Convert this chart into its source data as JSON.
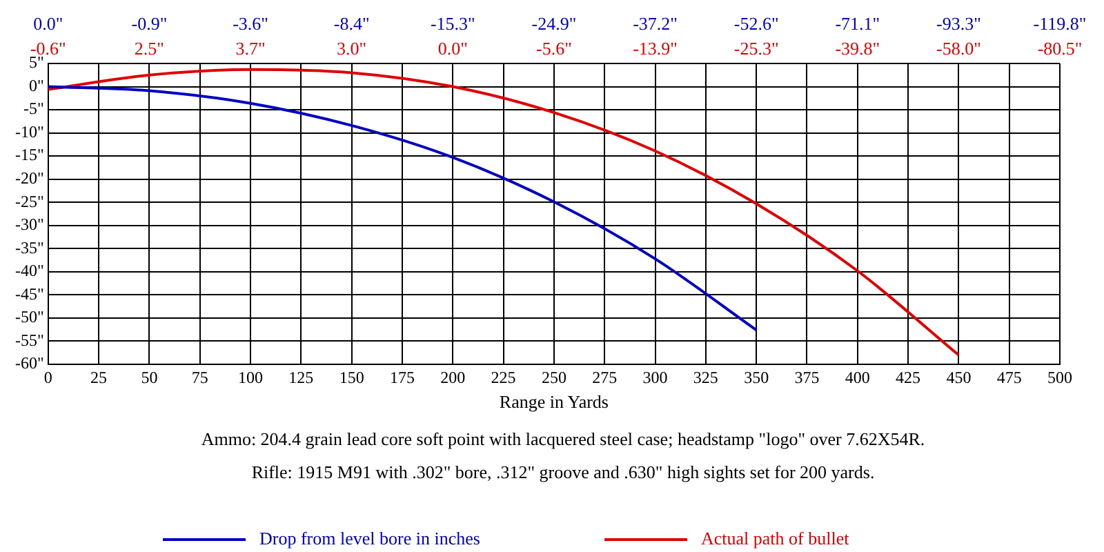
{
  "chart_data": {
    "type": "line",
    "xlabel": "Range in Yards",
    "x": [
      0,
      50,
      100,
      150,
      200,
      250,
      300,
      350,
      400,
      450
    ],
    "series": [
      {
        "name": "Drop from level bore in inches",
        "color": "#0000c0",
        "values": [
          0.0,
          -0.9,
          -3.6,
          -8.4,
          -15.3,
          -24.9,
          -37.2,
          -52.6,
          null,
          null
        ]
      },
      {
        "name": "Actual path of bullet",
        "color": "#e00000",
        "values": [
          -0.6,
          2.5,
          3.7,
          3.0,
          0.0,
          -5.6,
          -13.9,
          -25.3,
          -39.8,
          -58.0
        ]
      }
    ],
    "xlim": [
      0,
      500
    ],
    "xticks": [
      0,
      25,
      50,
      75,
      100,
      125,
      150,
      175,
      200,
      225,
      250,
      275,
      300,
      325,
      350,
      375,
      400,
      425,
      450,
      475,
      500
    ],
    "ylim": [
      -60,
      5
    ],
    "yticks": [
      {
        "value": 5,
        "label": "5\""
      },
      {
        "value": 0,
        "label": "0\""
      },
      {
        "value": -5,
        "label": "-5\""
      },
      {
        "value": -10,
        "label": "-10\""
      },
      {
        "value": -15,
        "label": "-15\""
      },
      {
        "value": -20,
        "label": "-20\""
      },
      {
        "value": -25,
        "label": "-25\""
      },
      {
        "value": -30,
        "label": "-30\""
      },
      {
        "value": -35,
        "label": "-35\""
      },
      {
        "value": -40,
        "label": "-40\""
      },
      {
        "value": -45,
        "label": "-45\""
      },
      {
        "value": -50,
        "label": "-50\""
      },
      {
        "value": -55,
        "label": "-55\""
      },
      {
        "value": -60,
        "label": "-60\""
      }
    ],
    "grid": true,
    "legend": "bottom",
    "annotations": [
      "0.0\"   -0.9\"   -3.6\"   -8.4\"   -15.3\"   -24.9\"   -37.2\"   -52.6\"   -71.1\"   -93.3\"   -119.8\"",
      "-0.6\"   2.5\"   3.7\"   3.0\"   0.0\"   -5.6\"   -13.9\"   -25.3\"   -39.8\"   -58.0\"   -80.5\"",
      "Ammo: 204.4 grain lead core soft point with lacquered steel case; headstamp \"logo\" over 7.62X54R.",
      "Rifle: 1915 M91 with .302\" bore, .312\" groove and .630\" high sights set for 200 yards."
    ]
  }
}
